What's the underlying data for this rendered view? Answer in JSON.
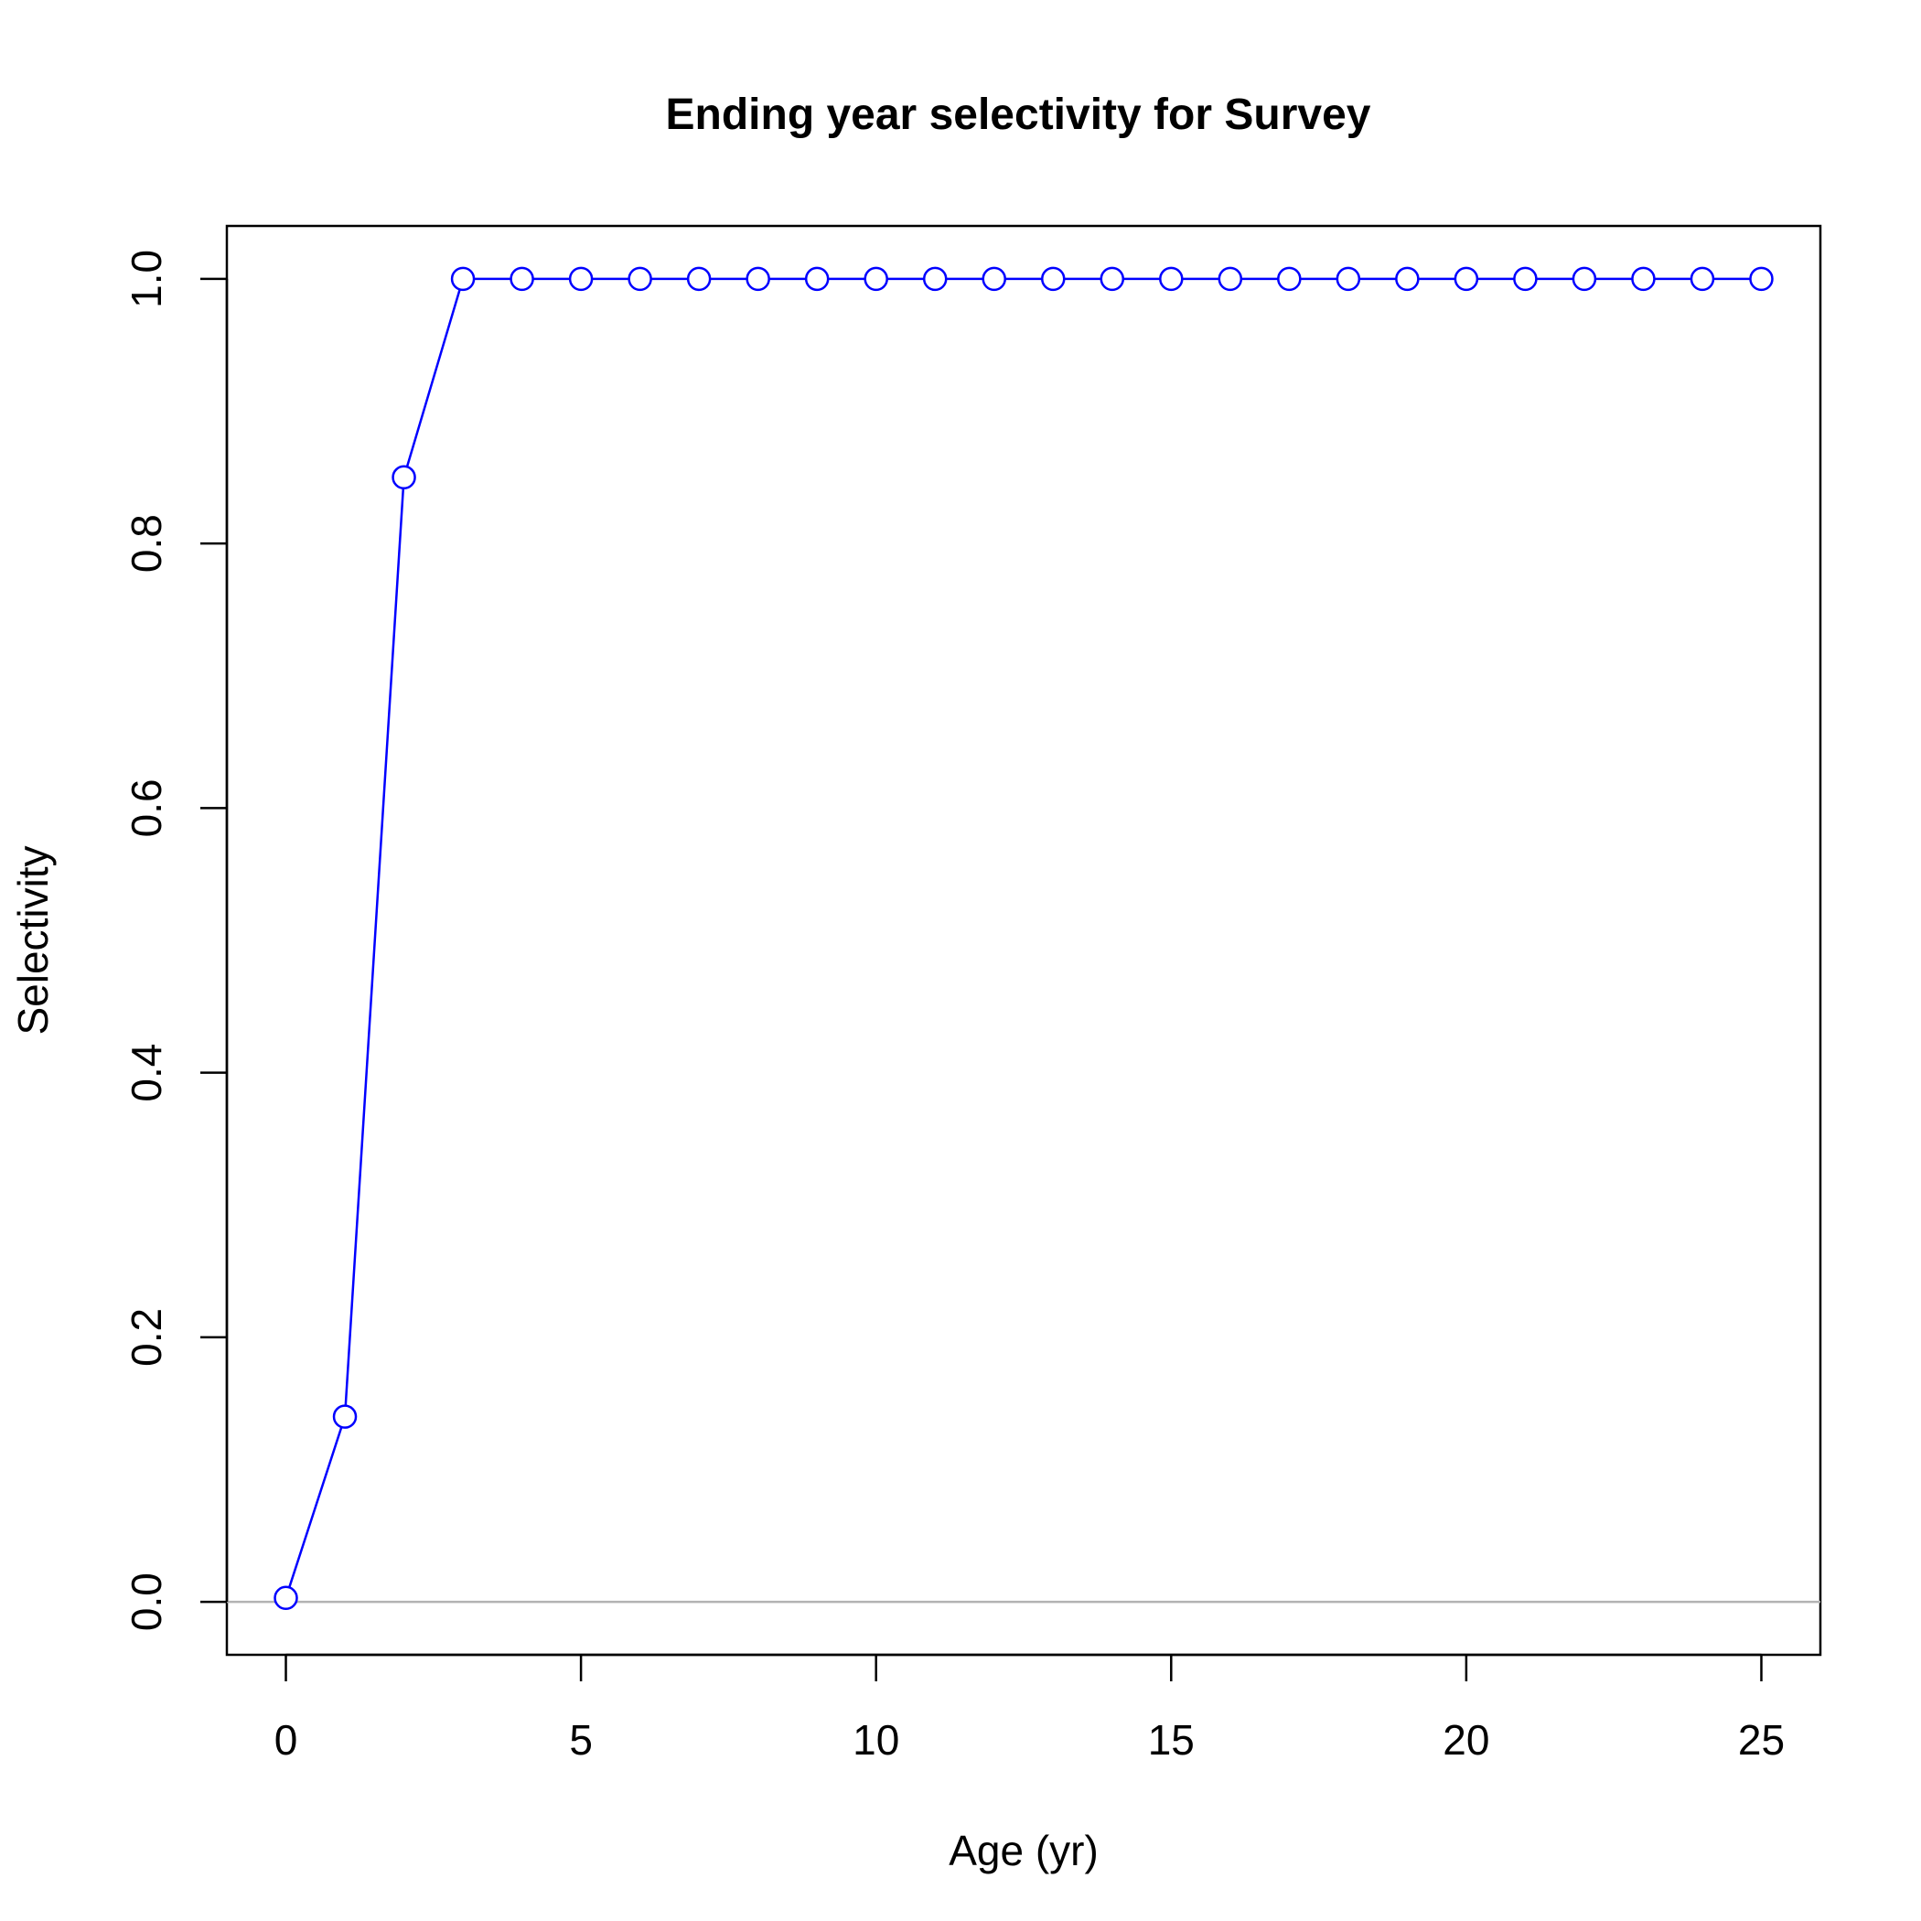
{
  "chart_data": {
    "type": "line",
    "title": "Ending year selectivity for Survey",
    "xlabel": "Age (yr)",
    "ylabel": "Selectivity",
    "xlim": [
      -1,
      26
    ],
    "ylim": [
      -0.04,
      1.04
    ],
    "xticks": [
      0,
      5,
      10,
      15,
      20,
      25
    ],
    "xtick_labels": [
      "0",
      "5",
      "10",
      "15",
      "20",
      "25"
    ],
    "yticks": [
      0.0,
      0.2,
      0.4,
      0.6,
      0.8,
      1.0
    ],
    "ytick_labels": [
      "0.0",
      "0.2",
      "0.4",
      "0.6",
      "0.8",
      "1.0"
    ],
    "grid": false,
    "reference_line": {
      "y": 0,
      "color": "#b3b3b3"
    },
    "series": [
      {
        "color": "#0000ff",
        "marker": "open-circle",
        "x": [
          0,
          1,
          2,
          3,
          4,
          5,
          6,
          7,
          8,
          9,
          10,
          11,
          12,
          13,
          14,
          15,
          16,
          17,
          18,
          19,
          20,
          21,
          22,
          23,
          24,
          25
        ],
        "y": [
          0.003,
          0.14,
          0.85,
          1,
          1,
          1,
          1,
          1,
          1,
          1,
          1,
          1,
          1,
          1,
          1,
          1,
          1,
          1,
          1,
          1,
          1,
          1,
          1,
          1,
          1,
          1
        ]
      }
    ]
  }
}
